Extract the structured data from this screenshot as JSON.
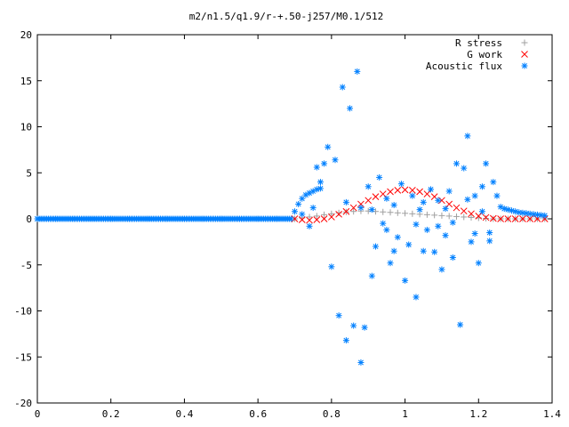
{
  "chart_data": {
    "type": "scatter",
    "title": "m2/n1.5/q1.9/r-+.50-j257/M0.1/512",
    "xlabel": "",
    "ylabel": "",
    "xlim": [
      0,
      1.4
    ],
    "ylim": [
      -20,
      20
    ],
    "x_ticks": [
      "0",
      "0.2",
      "0.4",
      "0.6",
      "0.8",
      "1",
      "1.2",
      "1.4"
    ],
    "y_ticks": [
      "20",
      "15",
      "10",
      "5",
      "0",
      "-5",
      "-10",
      "-15",
      "-20"
    ],
    "grid": false,
    "legend_position": "top-right",
    "series": [
      {
        "name": "R stress",
        "marker": "plus",
        "color": "#a0a0a0",
        "points": [
          [
            0.7,
            0.0
          ],
          [
            0.72,
            0.1
          ],
          [
            0.74,
            0.2
          ],
          [
            0.76,
            0.3
          ],
          [
            0.78,
            0.45
          ],
          [
            0.8,
            0.55
          ],
          [
            0.82,
            0.65
          ],
          [
            0.84,
            0.75
          ],
          [
            0.86,
            0.8
          ],
          [
            0.88,
            0.85
          ],
          [
            0.9,
            0.85
          ],
          [
            0.92,
            0.8
          ],
          [
            0.94,
            0.75
          ],
          [
            0.96,
            0.7
          ],
          [
            0.98,
            0.65
          ],
          [
            1.0,
            0.6
          ],
          [
            1.02,
            0.55
          ],
          [
            1.04,
            0.5
          ],
          [
            1.06,
            0.45
          ],
          [
            1.08,
            0.4
          ],
          [
            1.1,
            0.35
          ],
          [
            1.12,
            0.3
          ],
          [
            1.14,
            0.25
          ],
          [
            1.16,
            0.2
          ],
          [
            1.18,
            0.15
          ],
          [
            1.2,
            0.1
          ],
          [
            1.22,
            0.05
          ],
          [
            1.24,
            0.0
          ],
          [
            1.26,
            0.0
          ],
          [
            1.28,
            0.0
          ],
          [
            1.3,
            0.0
          ],
          [
            1.32,
            0.0
          ],
          [
            1.34,
            0.0
          ],
          [
            1.36,
            0.0
          ],
          [
            1.38,
            0.0
          ]
        ]
      },
      {
        "name": "G work",
        "marker": "cross",
        "color": "#ff0000",
        "points": [
          [
            0.7,
            0.0
          ],
          [
            0.72,
            -0.1
          ],
          [
            0.74,
            -0.15
          ],
          [
            0.76,
            -0.1
          ],
          [
            0.78,
            0.0
          ],
          [
            0.8,
            0.2
          ],
          [
            0.82,
            0.5
          ],
          [
            0.84,
            0.8
          ],
          [
            0.86,
            1.2
          ],
          [
            0.88,
            1.6
          ],
          [
            0.9,
            2.0
          ],
          [
            0.92,
            2.4
          ],
          [
            0.94,
            2.7
          ],
          [
            0.96,
            2.95
          ],
          [
            0.98,
            3.1
          ],
          [
            1.0,
            3.15
          ],
          [
            1.02,
            3.1
          ],
          [
            1.04,
            2.95
          ],
          [
            1.06,
            2.7
          ],
          [
            1.08,
            2.4
          ],
          [
            1.1,
            2.0
          ],
          [
            1.12,
            1.6
          ],
          [
            1.14,
            1.2
          ],
          [
            1.16,
            0.85
          ],
          [
            1.18,
            0.55
          ],
          [
            1.2,
            0.3
          ],
          [
            1.22,
            0.15
          ],
          [
            1.24,
            0.05
          ],
          [
            1.26,
            0.0
          ],
          [
            1.28,
            0.0
          ],
          [
            1.3,
            0.0
          ],
          [
            1.32,
            0.0
          ],
          [
            1.34,
            0.0
          ],
          [
            1.36,
            0.0
          ],
          [
            1.38,
            0.0
          ]
        ]
      },
      {
        "name": "Acoustic flux",
        "marker": "star",
        "color": "#0080ff",
        "points": [
          [
            0.0,
            0.0
          ],
          [
            0.05,
            0.0
          ],
          [
            0.1,
            0.0
          ],
          [
            0.15,
            0.0
          ],
          [
            0.2,
            0.0
          ],
          [
            0.25,
            0.0
          ],
          [
            0.3,
            0.0
          ],
          [
            0.35,
            0.0
          ],
          [
            0.4,
            0.0
          ],
          [
            0.45,
            0.0
          ],
          [
            0.5,
            0.0
          ],
          [
            0.55,
            0.0
          ],
          [
            0.6,
            0.0
          ],
          [
            0.65,
            0.0
          ],
          [
            0.69,
            0.0
          ],
          [
            0.7,
            0.8
          ],
          [
            0.71,
            1.6
          ],
          [
            0.72,
            2.2
          ],
          [
            0.73,
            2.6
          ],
          [
            0.74,
            2.8
          ],
          [
            0.75,
            3.0
          ],
          [
            0.76,
            3.2
          ],
          [
            0.77,
            3.3
          ],
          [
            0.72,
            0.5
          ],
          [
            0.74,
            -0.8
          ],
          [
            0.75,
            1.2
          ],
          [
            0.76,
            5.6
          ],
          [
            0.77,
            4.0
          ],
          [
            0.78,
            6.0
          ],
          [
            0.79,
            7.8
          ],
          [
            0.8,
            -5.2
          ],
          [
            0.81,
            6.4
          ],
          [
            0.82,
            -10.5
          ],
          [
            0.83,
            14.3
          ],
          [
            0.84,
            -13.2
          ],
          [
            0.85,
            12.0
          ],
          [
            0.86,
            -11.6
          ],
          [
            0.87,
            16.0
          ],
          [
            0.88,
            -15.6
          ],
          [
            0.89,
            -11.8
          ],
          [
            0.9,
            3.5
          ],
          [
            0.91,
            -6.2
          ],
          [
            0.92,
            -3.0
          ],
          [
            0.93,
            4.5
          ],
          [
            0.94,
            -0.5
          ],
          [
            0.95,
            2.2
          ],
          [
            0.96,
            -4.8
          ],
          [
            0.97,
            1.5
          ],
          [
            0.98,
            -2.0
          ],
          [
            0.99,
            3.8
          ],
          [
            1.0,
            -6.7
          ],
          [
            1.01,
            -2.8
          ],
          [
            1.02,
            2.5
          ],
          [
            1.03,
            -8.5
          ],
          [
            1.04,
            1.0
          ],
          [
            1.05,
            -3.5
          ],
          [
            1.06,
            -1.2
          ],
          [
            1.07,
            3.2
          ],
          [
            1.08,
            -3.6
          ],
          [
            1.09,
            2.0
          ],
          [
            1.1,
            -5.5
          ],
          [
            1.11,
            -1.8
          ],
          [
            1.12,
            3.0
          ],
          [
            1.13,
            -4.2
          ],
          [
            1.14,
            6.0
          ],
          [
            1.15,
            -11.5
          ],
          [
            1.16,
            5.5
          ],
          [
            1.17,
            9.0
          ],
          [
            1.18,
            -2.5
          ],
          [
            1.19,
            2.5
          ],
          [
            1.2,
            -4.8
          ],
          [
            1.21,
            3.5
          ],
          [
            1.22,
            6.0
          ],
          [
            1.23,
            -1.5
          ],
          [
            1.24,
            4.0
          ],
          [
            1.25,
            2.5
          ],
          [
            0.84,
            1.8
          ],
          [
            0.88,
            1.2
          ],
          [
            0.91,
            1.0
          ],
          [
            0.95,
            -1.2
          ],
          [
            0.97,
            -3.5
          ],
          [
            1.03,
            -0.6
          ],
          [
            1.05,
            1.8
          ],
          [
            1.09,
            -0.8
          ],
          [
            1.11,
            1.1
          ],
          [
            1.13,
            -0.4
          ],
          [
            1.17,
            2.1
          ],
          [
            1.19,
            -1.6
          ],
          [
            1.21,
            0.8
          ],
          [
            1.23,
            -2.4
          ],
          [
            1.26,
            1.3
          ],
          [
            1.27,
            1.1
          ],
          [
            1.28,
            1.0
          ],
          [
            1.29,
            0.9
          ],
          [
            1.3,
            0.8
          ],
          [
            1.31,
            0.7
          ],
          [
            1.32,
            0.65
          ],
          [
            1.33,
            0.6
          ],
          [
            1.34,
            0.55
          ],
          [
            1.35,
            0.5
          ],
          [
            1.36,
            0.45
          ],
          [
            1.37,
            0.4
          ],
          [
            1.38,
            0.35
          ]
        ]
      }
    ]
  }
}
